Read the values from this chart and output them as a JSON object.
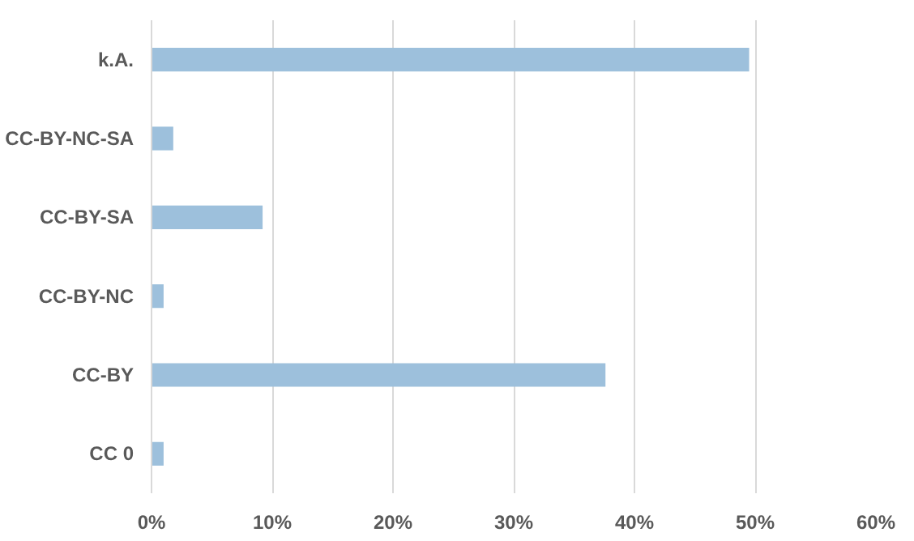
{
  "chart_data": {
    "type": "bar",
    "orientation": "horizontal",
    "categories": [
      "k.A.",
      "CC-BY-NC-SA",
      "CC-BY-SA",
      "CC-BY-NC",
      "CC-BY",
      "CC 0"
    ],
    "values": [
      49.5,
      1.8,
      9.2,
      1.0,
      37.6,
      1.0
    ],
    "color": "#9dc0dc",
    "xlim": [
      0,
      60
    ],
    "xticks": [
      {
        "value": 0,
        "label": "0%"
      },
      {
        "value": 10,
        "label": "10%"
      },
      {
        "value": 20,
        "label": "20%"
      },
      {
        "value": 30,
        "label": "30%"
      },
      {
        "value": 40,
        "label": "40%"
      },
      {
        "value": 50,
        "label": "50%"
      },
      {
        "value": 60,
        "label": "60%"
      }
    ],
    "grid": "x"
  }
}
